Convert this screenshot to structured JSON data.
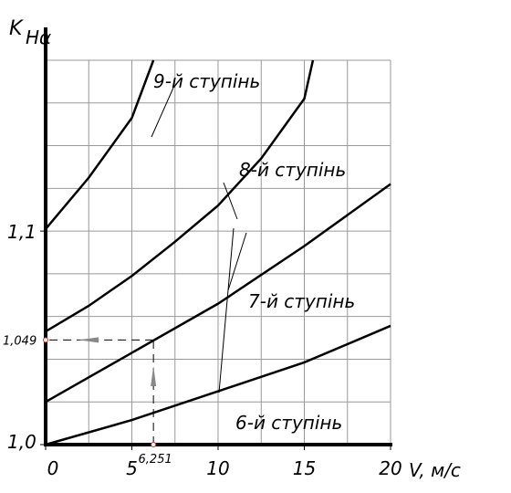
{
  "chart_data": {
    "type": "line",
    "y_label": {
      "main": "K",
      "sub": "Hα"
    },
    "x_label": "V, м/с",
    "xlim": [
      0,
      20
    ],
    "ylim": [
      1.0,
      1.18
    ],
    "xticks": [
      0,
      5,
      10,
      15,
      20
    ],
    "yticks": [
      {
        "value": 1.0,
        "label": "1,0"
      },
      {
        "value": 1.1,
        "label": "1,1"
      }
    ],
    "x_grid": [
      0,
      2.5,
      5,
      7.5,
      10,
      12.5,
      15,
      17.5,
      20
    ],
    "y_grid": [
      1.0,
      1.02,
      1.04,
      1.06,
      1.08,
      1.1,
      1.12,
      1.14,
      1.16,
      1.18
    ],
    "series": [
      {
        "name": "9-й ступінь",
        "color": "#000000",
        "x": [
          0,
          2.5,
          5,
          6.25
        ],
        "values": [
          1.101,
          1.125,
          1.153,
          1.18
        ]
      },
      {
        "name": "8-й ступінь",
        "color": "#000000",
        "x": [
          0,
          2.5,
          5,
          7.5,
          10,
          12.5,
          15,
          15.5
        ],
        "values": [
          1.053,
          1.065,
          1.079,
          1.095,
          1.112,
          1.134,
          1.162,
          1.18
        ]
      },
      {
        "name": "7-й ступінь",
        "color": "#000000",
        "x": [
          0,
          5,
          10,
          15,
          20
        ],
        "values": [
          1.02,
          1.043,
          1.066,
          1.093,
          1.122
        ]
      },
      {
        "name": "6-й ступінь",
        "color": "#000000",
        "x": [
          0,
          5,
          10,
          15,
          20
        ],
        "values": [
          1.0,
          1.0115,
          1.025,
          1.0385,
          1.0556
        ]
      }
    ],
    "marker_point": {
      "x": 6.251,
      "y": 1.049,
      "x_label": "6,251",
      "y_label": "1,049"
    }
  }
}
